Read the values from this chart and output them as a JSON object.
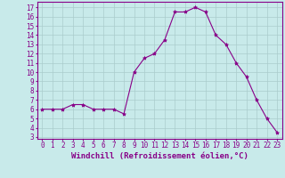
{
  "x": [
    0,
    1,
    2,
    3,
    4,
    5,
    6,
    7,
    8,
    9,
    10,
    11,
    12,
    13,
    14,
    15,
    16,
    17,
    18,
    19,
    20,
    21,
    22,
    23
  ],
  "y": [
    6,
    6,
    6,
    6.5,
    6.5,
    6,
    6,
    6,
    5.5,
    10,
    11.5,
    12,
    13.5,
    16.5,
    16.5,
    17,
    16.5,
    14,
    13,
    11,
    9.5,
    7,
    5,
    3.5
  ],
  "line_color": "#880088",
  "marker": "*",
  "marker_size": 3,
  "bg_color": "#c8eaea",
  "grid_color": "#aacccc",
  "xlabel": "Windchill (Refroidissement éolien,°C)",
  "xlabel_fontsize": 6.5,
  "ylabel_ticks": [
    3,
    4,
    5,
    6,
    7,
    8,
    9,
    10,
    11,
    12,
    13,
    14,
    15,
    16,
    17
  ],
  "xlim": [
    -0.5,
    23.5
  ],
  "ylim": [
    2.8,
    17.6
  ],
  "tick_fontsize": 5.5,
  "spine_color": "#880088"
}
